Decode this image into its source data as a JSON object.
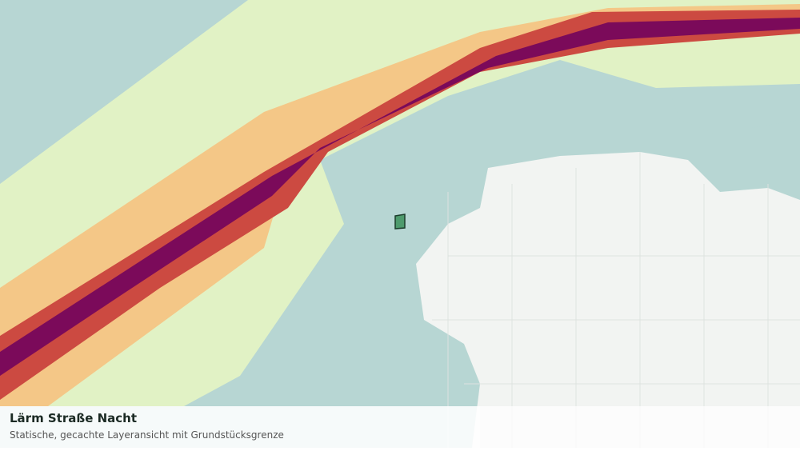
{
  "title": "Lärm Straße Nacht",
  "subtitle": "Statische, gecachte Layeransicht mit Grundstücksgrenze"
}
